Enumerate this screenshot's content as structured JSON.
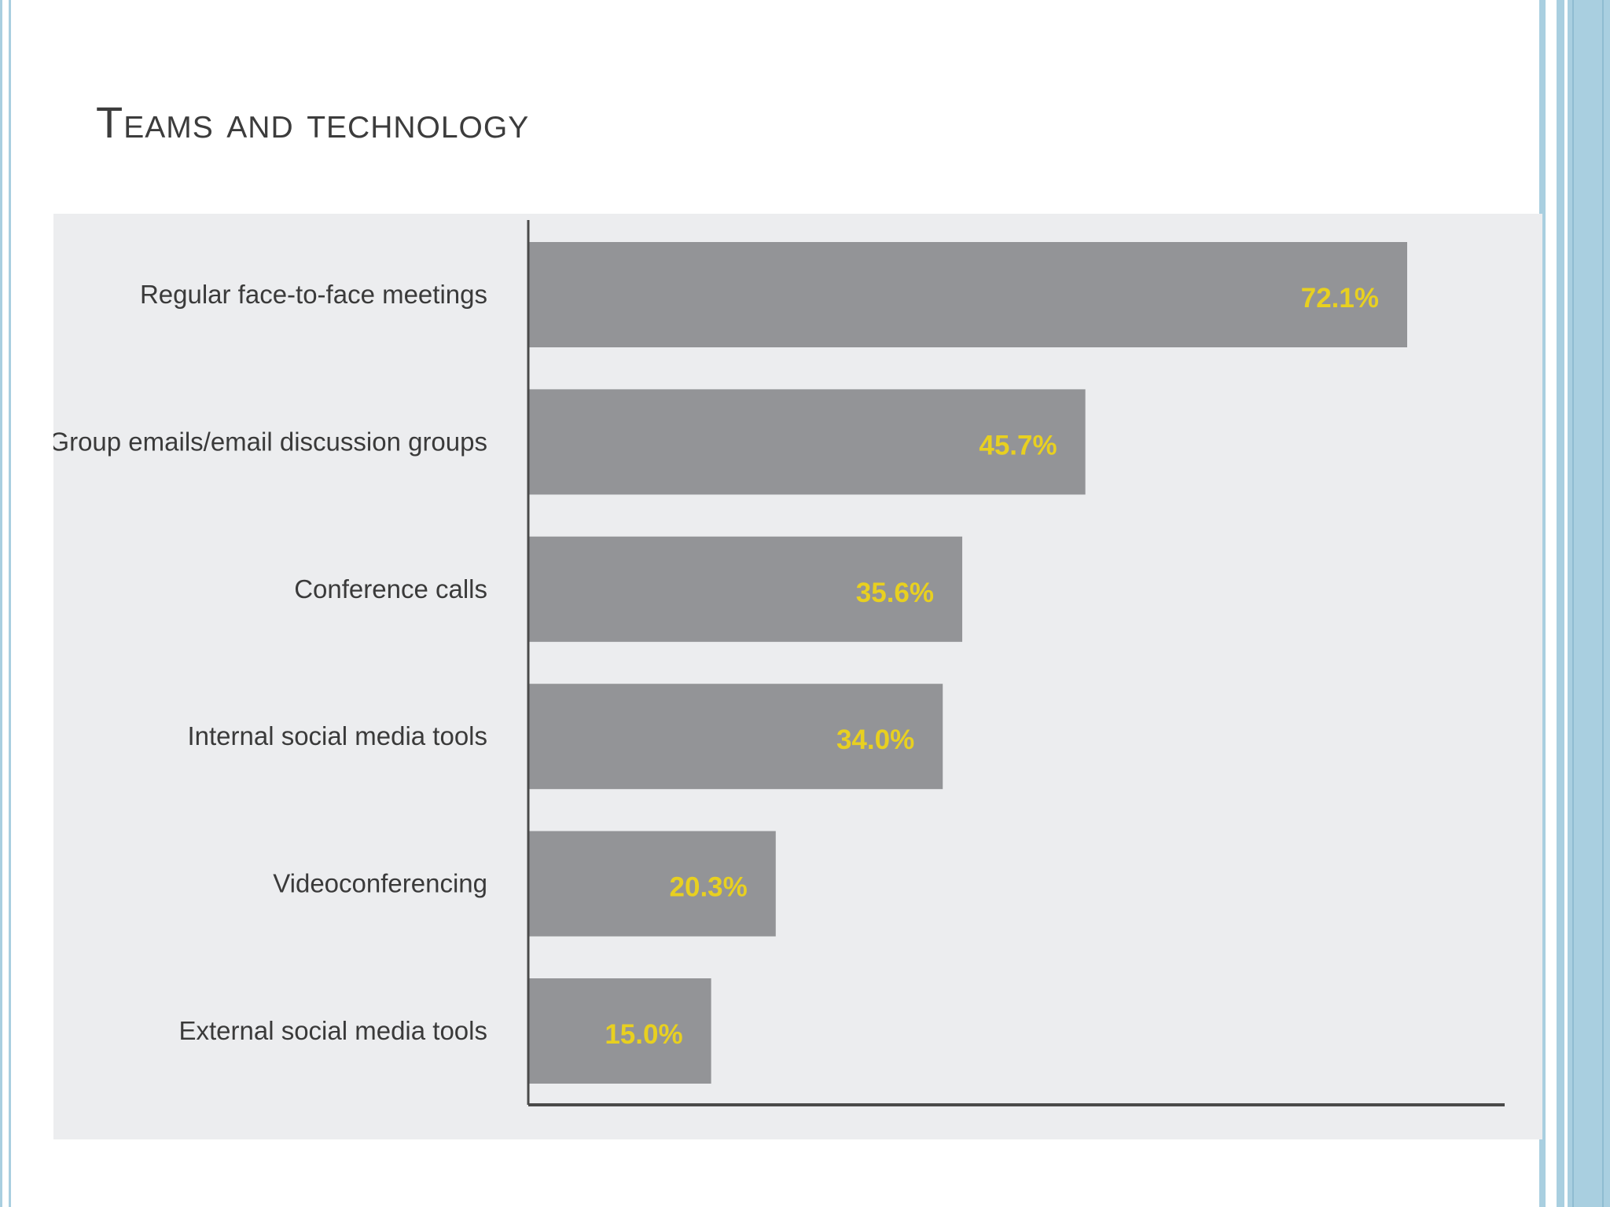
{
  "slide": {
    "title": "Teams and technology"
  },
  "colors": {
    "bar": "#939497",
    "value_label": "#e8d020",
    "panel_bg": "#ecedef",
    "axis": "#4a4a4a",
    "accent_border": "#a9cfe0"
  },
  "chart_data": {
    "type": "bar",
    "orientation": "horizontal",
    "title": "",
    "xlabel": "",
    "ylabel": "",
    "xlim": [
      0,
      80
    ],
    "grid": false,
    "categories": [
      "Regular face-to-face meetings",
      "Group emails/email discussion groups",
      "Conference calls",
      "Internal social media tools",
      "Videoconferencing",
      "External social media tools"
    ],
    "values": [
      72.1,
      45.7,
      35.6,
      34.0,
      20.3,
      15.0
    ],
    "value_labels": [
      "72.1%",
      "45.7%",
      "35.6%",
      "34.0%",
      "20.3%",
      "15.0%"
    ]
  }
}
